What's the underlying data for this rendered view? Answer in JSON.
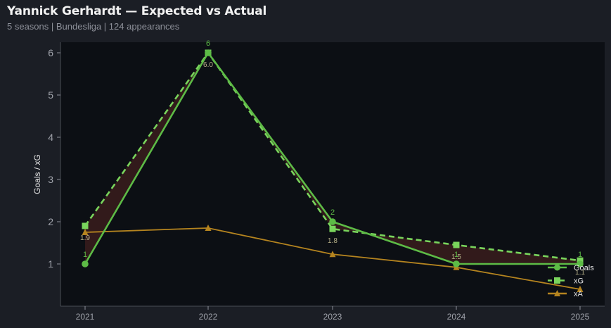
{
  "header": {
    "title": "Yannick Gerhardt — Expected vs Actual",
    "subtitle": "5 seasons | Bundesliga | 124 appearances"
  },
  "colors": {
    "goals": "#5dbb46",
    "xg": "#79d45c",
    "xa": "#b5841f",
    "plot_bg": "#0c0f14",
    "page_bg": "#1b1e25",
    "fill_under": "#3a1c1c",
    "axis_text": "#a0a3ab"
  },
  "chart_data": {
    "type": "line",
    "x": [
      "2021",
      "2022",
      "2023",
      "2024",
      "2025"
    ],
    "ylabel": "Goals / xG",
    "xlabel": "",
    "ylim": [
      0,
      6.25
    ],
    "yticks": [
      1,
      2,
      3,
      4,
      5,
      6
    ],
    "grid": false,
    "legend_position": "lower-right",
    "series": [
      {
        "name": "Goals",
        "key": "goals",
        "values": [
          1,
          6,
          2,
          1,
          1
        ],
        "labels": [
          "1",
          "6",
          "2",
          "1",
          "1"
        ],
        "style": "solid",
        "marker": "circle"
      },
      {
        "name": "xG",
        "key": "xg",
        "values": [
          1.9,
          6.0,
          1.83,
          1.45,
          1.08
        ],
        "labels": [
          "1.9",
          "6.0",
          "1.8",
          "1.5",
          "1.1"
        ],
        "style": "dashed",
        "marker": "square"
      },
      {
        "name": "xA",
        "key": "xa",
        "values": [
          1.75,
          1.85,
          1.23,
          0.92,
          0.4
        ],
        "style": "solid",
        "marker": "triangle"
      }
    ]
  }
}
